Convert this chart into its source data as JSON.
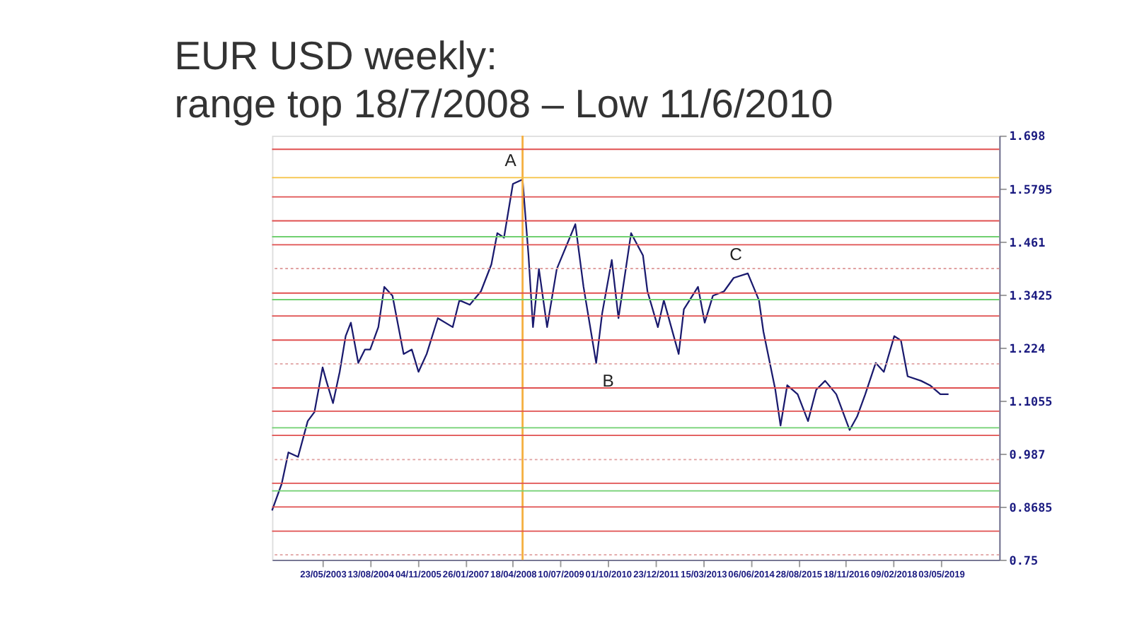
{
  "chart_data": {
    "type": "line",
    "title": "EUR USD weekly:\nrange top 18/7/2008 – Low 11/6/2010",
    "x": [
      "2002-02-01",
      "2002-05-03",
      "2002-07-05",
      "2002-10-04",
      "2003-01-03",
      "2003-03-07",
      "2003-05-23",
      "2003-06-27",
      "2003-08-29",
      "2003-10-31",
      "2003-12-26",
      "2004-02-13",
      "2004-04-23",
      "2004-06-25",
      "2004-08-13",
      "2004-10-29",
      "2004-12-24",
      "2005-03-11",
      "2005-06-24",
      "2005-09-09",
      "2005-11-11",
      "2006-01-27",
      "2006-05-12",
      "2006-09-29",
      "2006-12-01",
      "2007-03-09",
      "2007-06-22",
      "2007-09-28",
      "2007-11-23",
      "2008-01-25",
      "2008-04-18",
      "2008-07-18",
      "2008-09-12",
      "2008-10-24",
      "2008-12-19",
      "2009-03-06",
      "2009-06-05",
      "2009-11-27",
      "2010-02-12",
      "2010-06-11",
      "2010-08-06",
      "2010-11-05",
      "2011-01-07",
      "2011-05-06",
      "2011-08-26",
      "2011-10-07",
      "2012-01-13",
      "2012-03-09",
      "2012-07-27",
      "2012-09-14",
      "2013-01-25",
      "2013-03-29",
      "2013-06-14",
      "2013-09-27",
      "2013-12-27",
      "2014-05-09",
      "2014-08-22",
      "2014-10-03",
      "2015-01-23",
      "2015-03-13",
      "2015-05-15",
      "2015-08-21",
      "2015-11-27",
      "2016-02-12",
      "2016-05-06",
      "2016-08-19",
      "2016-12-23",
      "2017-03-03",
      "2017-05-19",
      "2017-08-25",
      "2017-11-10",
      "2018-02-16",
      "2018-04-20",
      "2018-06-22",
      "2018-10-26",
      "2019-01-18",
      "2019-04-26",
      "2019-07-12"
    ],
    "series": [
      {
        "color": "#1a1a6e",
        "values": [
          0.86,
          0.92,
          0.99,
          0.98,
          1.06,
          1.08,
          1.18,
          1.15,
          1.1,
          1.17,
          1.25,
          1.28,
          1.19,
          1.22,
          1.22,
          1.27,
          1.36,
          1.34,
          1.21,
          1.22,
          1.17,
          1.21,
          1.29,
          1.27,
          1.33,
          1.32,
          1.35,
          1.41,
          1.48,
          1.47,
          1.59,
          1.6,
          1.43,
          1.27,
          1.4,
          1.27,
          1.4,
          1.5,
          1.36,
          1.19,
          1.3,
          1.42,
          1.29,
          1.48,
          1.43,
          1.35,
          1.27,
          1.33,
          1.21,
          1.31,
          1.36,
          1.28,
          1.34,
          1.35,
          1.38,
          1.39,
          1.33,
          1.26,
          1.13,
          1.05,
          1.14,
          1.12,
          1.06,
          1.13,
          1.15,
          1.12,
          1.04,
          1.07,
          1.12,
          1.19,
          1.17,
          1.25,
          1.24,
          1.16,
          1.15,
          1.14,
          1.12,
          1.12
        ]
      }
    ],
    "xlim": [
      "2002-02-01",
      "2020-11-01"
    ],
    "xticks": [
      {
        "value": "2003-05-23",
        "label": "23/05/2003"
      },
      {
        "value": "2004-08-13",
        "label": "13/08/2004"
      },
      {
        "value": "2005-11-04",
        "label": "04/11/2005"
      },
      {
        "value": "2007-01-26",
        "label": "26/01/2007"
      },
      {
        "value": "2008-04-18",
        "label": "18/04/2008"
      },
      {
        "value": "2009-07-10",
        "label": "10/07/2009"
      },
      {
        "value": "2010-10-01",
        "label": "01/10/2010"
      },
      {
        "value": "2011-12-23",
        "label": "23/12/2011"
      },
      {
        "value": "2013-03-15",
        "label": "15/03/2013"
      },
      {
        "value": "2014-06-06",
        "label": "06/06/2014"
      },
      {
        "value": "2015-08-28",
        "label": "28/08/2015"
      },
      {
        "value": "2016-11-18",
        "label": "18/11/2016"
      },
      {
        "value": "2018-02-09",
        "label": "09/02/2018"
      },
      {
        "value": "2019-05-03",
        "label": "03/05/2019"
      }
    ],
    "ylim": [
      0.75,
      1.698
    ],
    "yticks": [
      0.75,
      0.8685,
      0.987,
      1.1055,
      1.224,
      1.3425,
      1.461,
      1.5795,
      1.698
    ],
    "ref_lines": [
      {
        "axis": "x",
        "value": "2008-07-18",
        "color": "#f5b041"
      },
      {
        "axis": "y",
        "value": 1.604,
        "color": "#f5c242"
      },
      {
        "axis": "y",
        "value": 1.6675,
        "color": "#e05050"
      },
      {
        "axis": "y",
        "value": 1.561,
        "color": "#e05050"
      },
      {
        "axis": "y",
        "value": 1.5075,
        "color": "#e05050"
      },
      {
        "axis": "y",
        "value": 1.472,
        "color": "#70d070"
      },
      {
        "axis": "y",
        "value": 1.454,
        "color": "#e05050"
      },
      {
        "axis": "y",
        "value": 1.401,
        "color": "#e0a0a0",
        "line_style": "dotted"
      },
      {
        "axis": "y",
        "value": 1.346,
        "color": "#e05050"
      },
      {
        "axis": "y",
        "value": 1.3315,
        "color": "#70d070"
      },
      {
        "axis": "y",
        "value": 1.295,
        "color": "#e05050"
      },
      {
        "axis": "y",
        "value": 1.241,
        "color": "#e05050"
      },
      {
        "axis": "y",
        "value": 1.188,
        "color": "#e0a0a0",
        "line_style": "dotted"
      },
      {
        "axis": "y",
        "value": 1.134,
        "color": "#e05050"
      },
      {
        "axis": "y",
        "value": 1.082,
        "color": "#e05050"
      },
      {
        "axis": "y",
        "value": 1.045,
        "color": "#70d070"
      },
      {
        "axis": "y",
        "value": 1.028,
        "color": "#e05050"
      },
      {
        "axis": "y",
        "value": 0.974,
        "color": "#e0a0a0",
        "line_style": "dotted"
      },
      {
        "axis": "y",
        "value": 0.921,
        "color": "#e05050"
      },
      {
        "axis": "y",
        "value": 0.904,
        "color": "#70d070"
      },
      {
        "axis": "y",
        "value": 0.868,
        "color": "#e05050"
      },
      {
        "axis": "y",
        "value": 0.814,
        "color": "#e05050"
      },
      {
        "axis": "y",
        "value": 0.761,
        "color": "#e0a0a0",
        "line_style": "dotted"
      }
    ],
    "annotations": [
      {
        "text": "A",
        "x": "2008-07-18",
        "y": 1.6
      },
      {
        "text": "B",
        "x": "2010-06-11",
        "y": 1.19
      },
      {
        "text": "C",
        "x": "2014-05-09",
        "y": 1.39
      }
    ],
    "grid": false,
    "marker": "none",
    "line_style": "solid"
  }
}
